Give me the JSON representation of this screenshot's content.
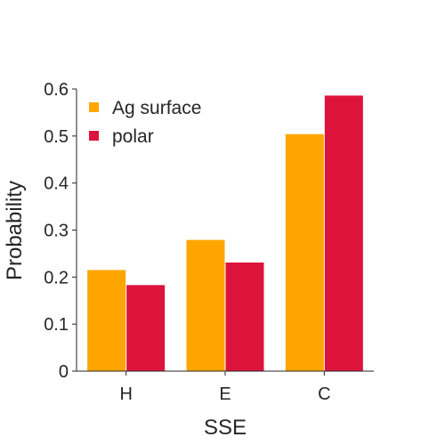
{
  "chart_data": {
    "type": "bar",
    "categories": [
      "H",
      "E",
      "C"
    ],
    "series": [
      {
        "name": "Ag surface",
        "values": [
          0.215,
          0.279,
          0.504
        ],
        "color": "#FFA500"
      },
      {
        "name": "polar",
        "values": [
          0.183,
          0.231,
          0.586
        ],
        "color": "#DC143C"
      }
    ],
    "xlabel": "SSE",
    "ylabel": "Probability",
    "ylim": [
      0,
      0.6
    ],
    "yticks": [
      "0",
      "0.1",
      "0.2",
      "0.3",
      "0.4",
      "0.5",
      "0.6"
    ],
    "grid": false,
    "legend_position": "top-left"
  }
}
